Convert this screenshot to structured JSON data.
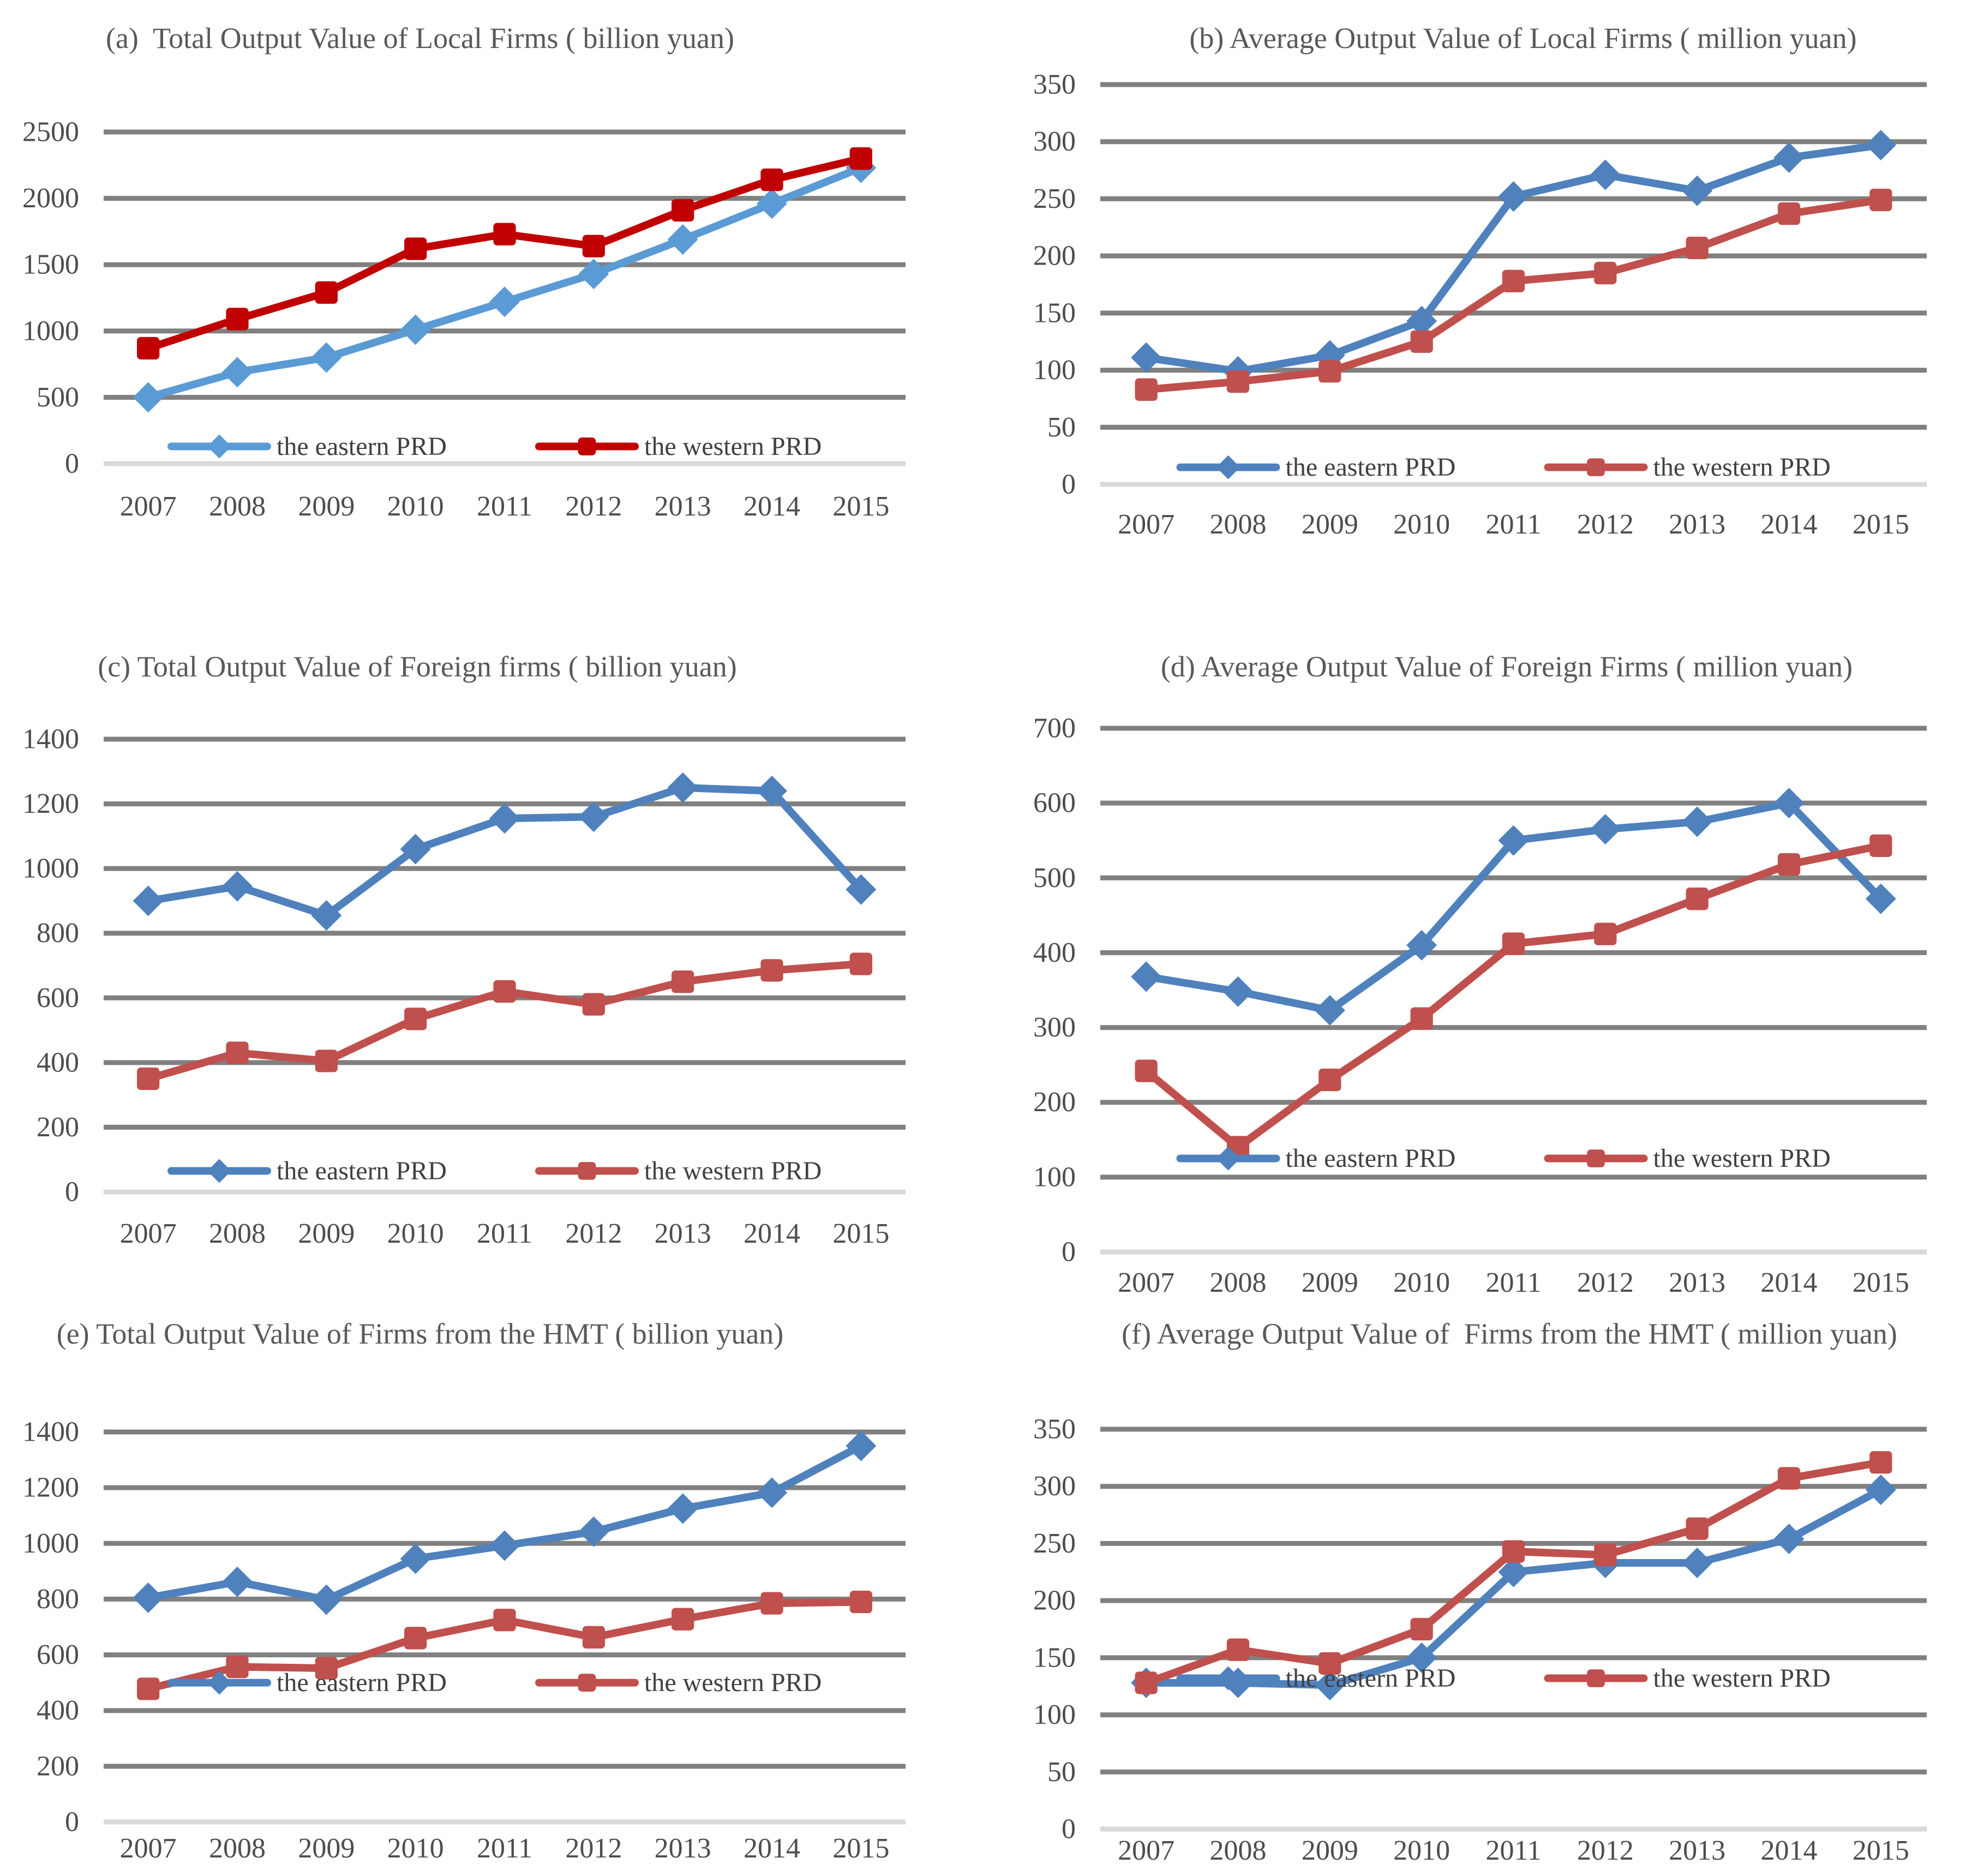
{
  "page": {
    "background": "#FFFFFF"
  },
  "palette": {
    "gridline": "#808080",
    "zero_line": "#D9D9D9",
    "title_text": "#595959",
    "tick_text": "#4D4D4D",
    "legend_text": "#404040",
    "eastern_light_blue": "#5B9BD5",
    "western_dark_red": "#C00000",
    "eastern_blue": "#4F81BD",
    "western_red": "#C0504D"
  },
  "chart_data": [
    {
      "id": "a",
      "type": "line",
      "title": "(a)  Total Output Value of Local Firms ( billion yuan)",
      "categories": [
        "2007",
        "2008",
        "2009",
        "2010",
        "2011",
        "2012",
        "2013",
        "2014",
        "2015"
      ],
      "xlabel": "",
      "ylabel": "",
      "ylim": [
        0,
        2500
      ],
      "ytick_step": 500,
      "grid": true,
      "legend_position": "inside-bottom",
      "series": [
        {
          "name": "the eastern PRD",
          "marker": "diamond",
          "color": "#5B9BD5",
          "values": [
            500,
            690,
            800,
            1010,
            1220,
            1430,
            1690,
            1960,
            2230
          ]
        },
        {
          "name": "the western PRD",
          "marker": "square",
          "color": "#C00000",
          "values": [
            870,
            1090,
            1290,
            1620,
            1730,
            1640,
            1910,
            2140,
            2300
          ]
        }
      ]
    },
    {
      "id": "b",
      "type": "line",
      "title": "(b) Average Output Value of Local Firms ( million yuan)",
      "categories": [
        "2007",
        "2008",
        "2009",
        "2010",
        "2011",
        "2012",
        "2013",
        "2014",
        "2015"
      ],
      "xlabel": "",
      "ylabel": "",
      "ylim": [
        0,
        350
      ],
      "ytick_step": 50,
      "grid": true,
      "legend_position": "inside-bottom",
      "series": [
        {
          "name": "the eastern PRD",
          "marker": "diamond",
          "color": "#4F81BD",
          "values": [
            111,
            99,
            113,
            143,
            252,
            271,
            257,
            286,
            297
          ]
        },
        {
          "name": "the western PRD",
          "marker": "square",
          "color": "#C0504D",
          "values": [
            83,
            90,
            99,
            125,
            178,
            185,
            207,
            237,
            249
          ]
        }
      ]
    },
    {
      "id": "c",
      "type": "line",
      "title": "(c) Total Output Value of Foreign firms ( billion yuan)",
      "categories": [
        "2007",
        "2008",
        "2009",
        "2010",
        "2011",
        "2012",
        "2013",
        "2014",
        "2015"
      ],
      "xlabel": "",
      "ylabel": "",
      "ylim": [
        0,
        1400
      ],
      "ytick_step": 200,
      "grid": true,
      "legend_position": "inside-bottom",
      "series": [
        {
          "name": "the eastern PRD",
          "marker": "diamond",
          "color": "#4F81BD",
          "values": [
            900,
            945,
            855,
            1060,
            1155,
            1160,
            1250,
            1240,
            935
          ]
        },
        {
          "name": "the western PRD",
          "marker": "square",
          "color": "#C0504D",
          "values": [
            350,
            430,
            405,
            535,
            620,
            580,
            650,
            685,
            705
          ]
        }
      ]
    },
    {
      "id": "d",
      "type": "line",
      "title": "(d) Average Output Value of Foreign Firms ( million yuan)",
      "categories": [
        "2007",
        "2008",
        "2009",
        "2010",
        "2011",
        "2012",
        "2013",
        "2014",
        "2015"
      ],
      "xlabel": "",
      "ylabel": "",
      "ylim": [
        0,
        700
      ],
      "ytick_step": 100,
      "grid": true,
      "legend_position": "inside-bottom",
      "series": [
        {
          "name": "the eastern PRD",
          "marker": "diamond",
          "color": "#4F81BD",
          "values": [
            368,
            348,
            323,
            410,
            550,
            565,
            575,
            600,
            472
          ]
        },
        {
          "name": "the western PRD",
          "marker": "square",
          "color": "#C0504D",
          "values": [
            242,
            140,
            230,
            312,
            412,
            425,
            472,
            518,
            543
          ]
        }
      ]
    },
    {
      "id": "e",
      "type": "line",
      "title": "(e) Total Output Value of Firms from the HMT ( billion yuan)",
      "categories": [
        "2007",
        "2008",
        "2009",
        "2010",
        "2011",
        "2012",
        "2013",
        "2014",
        "2015"
      ],
      "xlabel": "",
      "ylabel": "",
      "ylim": [
        0,
        1400
      ],
      "ytick_step": 200,
      "grid": true,
      "legend_position": "inside-bottom",
      "series": [
        {
          "name": "the eastern PRD",
          "marker": "diamond",
          "color": "#4F81BD",
          "values": [
            805,
            862,
            798,
            945,
            992,
            1042,
            1125,
            1182,
            1350
          ]
        },
        {
          "name": "the western PRD",
          "marker": "square",
          "color": "#C0504D",
          "values": [
            478,
            557,
            552,
            660,
            725,
            663,
            728,
            785,
            790
          ]
        }
      ]
    },
    {
      "id": "f",
      "type": "line",
      "title": "(f) Average Output Value of  Firms from the HMT ( million yuan)",
      "categories": [
        "2007",
        "2008",
        "2009",
        "2010",
        "2011",
        "2012",
        "2013",
        "2014",
        "2015"
      ],
      "xlabel": "",
      "ylabel": "",
      "ylim": [
        0,
        350
      ],
      "ytick_step": 50,
      "grid": true,
      "legend_position": "inside-bottom",
      "series": [
        {
          "name": "the eastern PRD",
          "marker": "diamond",
          "color": "#4F81BD",
          "values": [
            128,
            128,
            126,
            150,
            225,
            233,
            233,
            254,
            297
          ]
        },
        {
          "name": "the western PRD",
          "marker": "square",
          "color": "#C0504D",
          "values": [
            128,
            157,
            145,
            175,
            243,
            240,
            263,
            307,
            321
          ]
        }
      ]
    }
  ]
}
